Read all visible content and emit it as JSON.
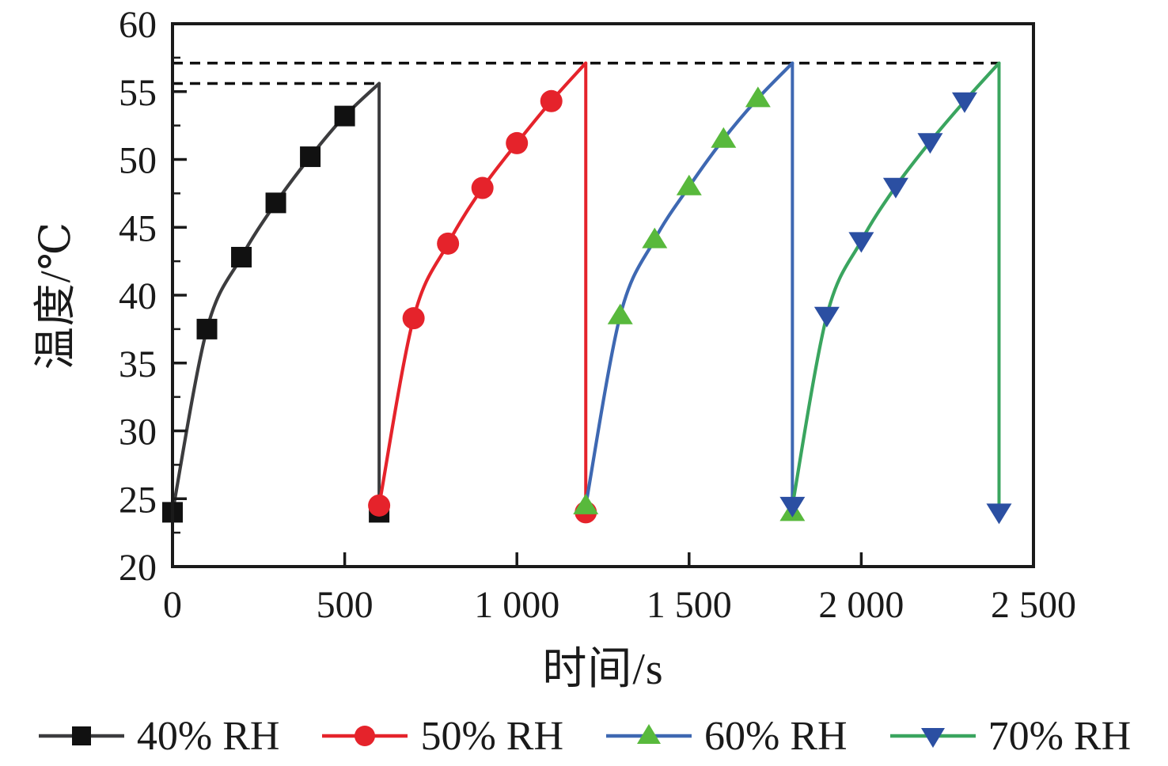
{
  "chart_data": {
    "type": "line",
    "title": "",
    "xlabel": "时间/s",
    "ylabel": "温度/℃",
    "xlim": [
      0,
      2500
    ],
    "ylim": [
      20,
      60
    ],
    "grid": false,
    "legend_position": "bottom",
    "x_major_ticks": [
      0,
      500,
      1000,
      1500,
      2000,
      2500
    ],
    "x_tick_labels": [
      "0",
      "500",
      "1 000",
      "1 500",
      "2 000",
      "2 500"
    ],
    "y_major_ticks": [
      20,
      25,
      30,
      35,
      40,
      45,
      50,
      55,
      60
    ],
    "y_tick_labels": [
      "20",
      "25",
      "30",
      "35",
      "40",
      "45",
      "50",
      "55",
      "60"
    ],
    "y_minor_ticks": [
      22.5,
      27.5,
      32.5,
      37.5,
      42.5,
      47.5,
      52.5,
      57.5
    ],
    "reference_lines": [
      {
        "y": 55.6,
        "x_start": 0,
        "x_end": 600,
        "style": "dashed",
        "color": "#111111"
      },
      {
        "y": 57.1,
        "x_start": 0,
        "x_end": 2400,
        "style": "dashed",
        "color": "#111111"
      }
    ],
    "series": [
      {
        "name": "40% RH",
        "marker": "square",
        "line_color": "#3c3c3e",
        "marker_color": "#111111",
        "rise_points": [
          [
            0,
            24
          ],
          [
            100,
            37.5
          ],
          [
            200,
            42.8
          ],
          [
            300,
            46.8
          ],
          [
            400,
            50.2
          ],
          [
            500,
            53.2
          ],
          [
            600,
            55.6
          ]
        ],
        "drop": {
          "x": 600,
          "to": 24
        }
      },
      {
        "name": "50% RH",
        "marker": "circle",
        "line_color": "#e5232b",
        "marker_color": "#e5232b",
        "rise_points": [
          [
            600,
            24.5
          ],
          [
            700,
            38.3
          ],
          [
            800,
            43.8
          ],
          [
            900,
            47.9
          ],
          [
            1000,
            51.2
          ],
          [
            1100,
            54.3
          ],
          [
            1200,
            57.1
          ]
        ],
        "drop": {
          "x": 1200,
          "to": 24
        }
      },
      {
        "name": "60% RH",
        "marker": "triangle-up",
        "line_color": "#3e68b2",
        "marker_color": "#58b93c",
        "rise_points": [
          [
            1200,
            24.5
          ],
          [
            1300,
            38.5
          ],
          [
            1400,
            44.1
          ],
          [
            1500,
            48.0
          ],
          [
            1600,
            51.5
          ],
          [
            1700,
            54.5
          ],
          [
            1800,
            57.1
          ]
        ],
        "drop": {
          "x": 1800,
          "to": 24
        }
      },
      {
        "name": "70% RH",
        "marker": "triangle-down",
        "line_color": "#3aa55f",
        "marker_color": "#2b4fa2",
        "rise_points": [
          [
            1800,
            24.5
          ],
          [
            1900,
            38.5
          ],
          [
            2000,
            44.0
          ],
          [
            2100,
            48.0
          ],
          [
            2200,
            51.3
          ],
          [
            2300,
            54.3
          ],
          [
            2400,
            57.1
          ]
        ],
        "drop": {
          "x": 2400,
          "to": 24
        }
      }
    ],
    "axis_color": "#1a1a1a"
  }
}
